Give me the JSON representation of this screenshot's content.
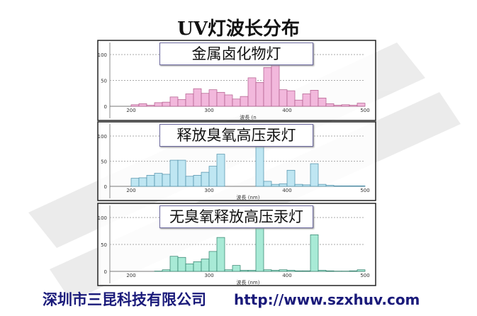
{
  "title": "UV灯波长分布",
  "watermark": {
    "company": "深圳市三昆科技有限公司",
    "url": "http://www.szxhuv.com",
    "logo_color": "#c8c8c8"
  },
  "chart_data": [
    {
      "type": "bar",
      "title": "金属卤化物灯",
      "xlabel": "波長 (n",
      "color": "#f2b8dc",
      "edge": "#b05a8a",
      "xlim": [
        200,
        500
      ],
      "ylim": [
        0,
        110
      ],
      "xticks": [
        200,
        300,
        400,
        500
      ],
      "yticks": [
        0,
        50,
        100
      ],
      "grid": true,
      "bin_start": [
        200,
        210,
        220,
        230,
        240,
        250,
        260,
        270,
        280,
        290,
        300,
        310,
        320,
        330,
        340,
        350,
        360,
        370,
        380,
        390,
        400,
        410,
        420,
        430,
        440,
        450,
        460,
        470,
        480,
        490
      ],
      "values": [
        3,
        5,
        2,
        7,
        8,
        18,
        13,
        24,
        34,
        25,
        32,
        27,
        22,
        14,
        19,
        55,
        46,
        75,
        85,
        32,
        30,
        12,
        24,
        31,
        16,
        5,
        2,
        3,
        2,
        6
      ]
    },
    {
      "type": "bar",
      "title": "释放臭氧高压汞灯",
      "xlabel": "波長 (nm)",
      "color": "#bfe6f2",
      "edge": "#4c8ea8",
      "xlim": [
        200,
        500
      ],
      "ylim": [
        0,
        110
      ],
      "xticks": [
        200,
        300,
        400,
        500
      ],
      "yticks": [
        0,
        50,
        100
      ],
      "grid": true,
      "bin_start": [
        200,
        210,
        220,
        230,
        240,
        250,
        260,
        270,
        280,
        290,
        300,
        310,
        320,
        330,
        340,
        350,
        360,
        370,
        380,
        390,
        400,
        410,
        420,
        430,
        440,
        450,
        460,
        470,
        480,
        490
      ],
      "values": [
        16,
        17,
        22,
        26,
        24,
        52,
        52,
        20,
        22,
        28,
        40,
        64,
        0,
        0,
        0,
        0,
        105,
        10,
        4,
        5,
        32,
        4,
        3,
        45,
        4,
        2,
        1,
        1,
        1,
        1
      ]
    },
    {
      "type": "bar",
      "title": "无臭氧释放高压汞灯",
      "xlabel": "波長 (nm)",
      "color": "#a8ead6",
      "edge": "#2e7f6a",
      "xlim": [
        200,
        500
      ],
      "ylim": [
        0,
        110
      ],
      "xticks": [
        200,
        300,
        400,
        500
      ],
      "yticks": [
        0,
        50,
        100
      ],
      "grid": true,
      "bin_start": [
        200,
        210,
        220,
        230,
        240,
        250,
        260,
        270,
        280,
        290,
        300,
        310,
        320,
        330,
        340,
        350,
        360,
        370,
        380,
        390,
        400,
        410,
        420,
        430,
        440,
        450,
        460,
        470,
        480,
        490
      ],
      "values": [
        0,
        0,
        0,
        0.5,
        3,
        28,
        26,
        14,
        18,
        23,
        37,
        63,
        3,
        11,
        2,
        2,
        105,
        3,
        2,
        3,
        2,
        1,
        1,
        68,
        2,
        1,
        0.5,
        0.5,
        1,
        3
      ]
    }
  ]
}
